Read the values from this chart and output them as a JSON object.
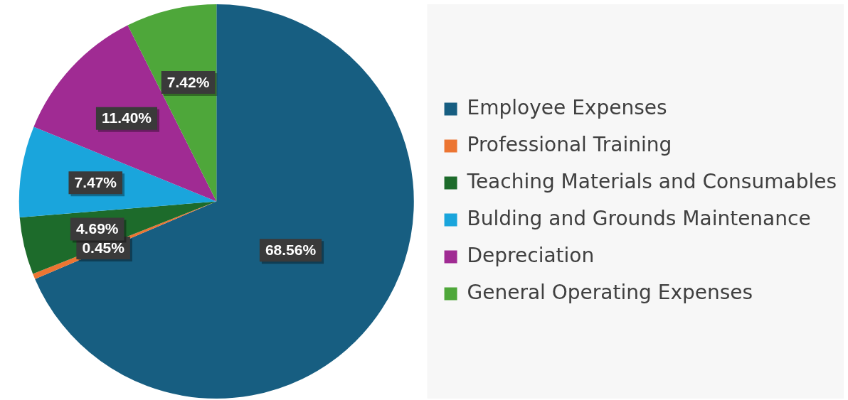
{
  "chart_data": {
    "type": "pie",
    "categories": [
      "Employee Expenses",
      "Professional Training",
      "Teaching Materials and Consumables",
      "Bulding and Grounds Maintenance",
      "Depreciation",
      "General Operating Expenses"
    ],
    "values": [
      68.56,
      0.45,
      4.69,
      7.47,
      11.4,
      7.42
    ],
    "colors": [
      "#175e81",
      "#ec7532",
      "#1d6b2b",
      "#1aa5dc",
      "#a02b93",
      "#4ea73a"
    ],
    "value_labels": [
      "68.56%",
      "0.45%",
      "4.69%",
      "7.47%",
      "11.40%",
      "7.42%"
    ],
    "legend": "right"
  }
}
